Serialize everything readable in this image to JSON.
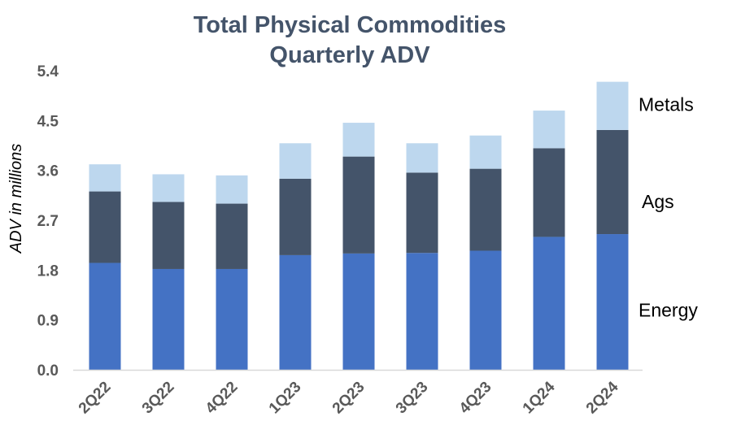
{
  "chart_data": {
    "type": "bar",
    "stacked": true,
    "title": [
      "Total Physical Commodities",
      "Quarterly ADV"
    ],
    "xlabel": "",
    "ylabel": "ADV in millions",
    "ylim": [
      0,
      5.4
    ],
    "yticks": [
      "0.0",
      "0.9",
      "1.8",
      "2.7",
      "3.6",
      "4.5",
      "5.4"
    ],
    "grid": false,
    "legend": "right-side labels",
    "categories": [
      "2Q22",
      "3Q22",
      "4Q22",
      "1Q23",
      "2Q23",
      "3Q23",
      "4Q23",
      "1Q24",
      "2Q24"
    ],
    "series": [
      {
        "name": "Energy",
        "color": "#4472c4",
        "values": [
          1.93,
          1.82,
          1.82,
          2.07,
          2.1,
          2.11,
          2.15,
          2.4,
          2.45
        ]
      },
      {
        "name": "Ags",
        "color": "#44546a",
        "values": [
          1.29,
          1.21,
          1.18,
          1.38,
          1.75,
          1.45,
          1.48,
          1.6,
          1.88
        ]
      },
      {
        "name": "Metals",
        "color": "#bdd7ee",
        "values": [
          0.49,
          0.5,
          0.51,
          0.64,
          0.61,
          0.53,
          0.6,
          0.68,
          0.87
        ]
      }
    ]
  }
}
